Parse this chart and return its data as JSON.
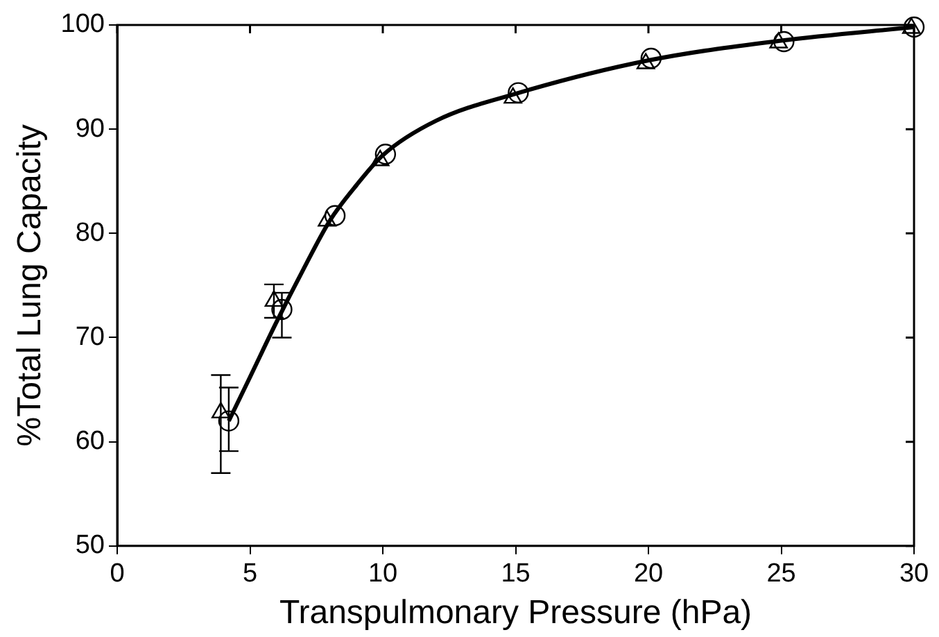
{
  "chart_data": {
    "type": "scatter",
    "xlabel": "Transpulmonary Pressure (hPa)",
    "ylabel": "%Total Lung Capacity",
    "xlim": [
      0,
      30
    ],
    "xticks": [
      0,
      5,
      10,
      15,
      20,
      25,
      30
    ],
    "ylim": [
      50,
      100
    ],
    "yticks": [
      50,
      60,
      70,
      80,
      90,
      100
    ],
    "grid": false,
    "legend": false,
    "series": [
      {
        "type": "line",
        "color": "#000000",
        "marker": "none",
        "line_style": "solid",
        "x": [
          4.2,
          5,
          6,
          7,
          8,
          9,
          10,
          12,
          15,
          20,
          25,
          30
        ],
        "values": [
          62,
          66.2,
          71.5,
          76.5,
          81.2,
          84.6,
          87.5,
          90.8,
          93.4,
          96.6,
          98.5,
          99.8
        ]
      },
      {
        "color": "#000000",
        "marker": "triangle",
        "x": [
          3.9,
          5.9,
          7.9,
          9.9,
          14.9,
          19.9,
          24.9,
          29.9
        ],
        "values": [
          62.8,
          73.5,
          81.2,
          87,
          93,
          96.3,
          98.3,
          99.7
        ],
        "errors": [
          [
            57,
            66.4
          ],
          [
            71.9,
            75.1
          ],
          null,
          null,
          null,
          null,
          null,
          null
        ]
      },
      {
        "color": "#000000",
        "marker": "circle",
        "x": [
          4.2,
          6.2,
          8.2,
          10.1,
          15.1,
          20.1,
          25.1,
          30
        ],
        "values": [
          62,
          72.7,
          81.7,
          87.6,
          93.5,
          96.8,
          98.4,
          99.8
        ],
        "errors": [
          [
            59.1,
            65.2
          ],
          [
            70,
            74.3
          ],
          null,
          null,
          null,
          null,
          null,
          null
        ]
      }
    ]
  }
}
